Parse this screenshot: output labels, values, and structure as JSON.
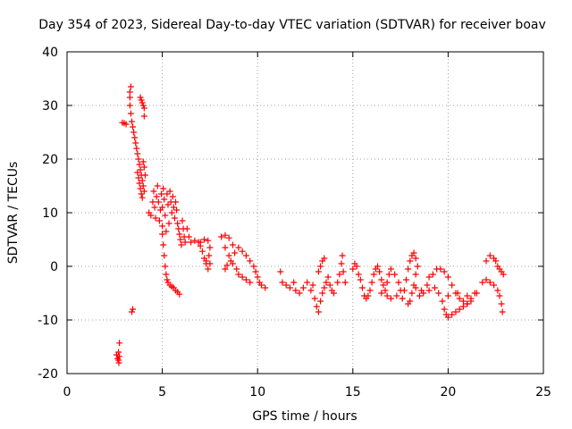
{
  "chart_data": {
    "type": "scatter",
    "title": "Day 354 of 2023, Sidereal Day-to-day VTEC variation (SDTVAR) for receiver boav",
    "xlabel": "GPS time / hours",
    "ylabel": "SDTVAR / TECUs",
    "xlim": [
      0,
      25
    ],
    "ylim": [
      -20,
      40
    ],
    "xticks": [
      0,
      5,
      10,
      15,
      20,
      25
    ],
    "yticks": [
      -20,
      -10,
      0,
      10,
      20,
      30,
      40
    ],
    "grid": true,
    "marker": "plus",
    "series": [
      {
        "name": "SDTVAR",
        "color": "#ff0000",
        "points": [
          [
            2.6,
            -16.5
          ],
          [
            2.65,
            -17.2
          ],
          [
            2.7,
            -16.0
          ],
          [
            2.7,
            -17.5
          ],
          [
            2.72,
            -18.0
          ],
          [
            2.75,
            -14.3
          ],
          [
            2.75,
            -16.8
          ],
          [
            2.9,
            26.8
          ],
          [
            3.0,
            26.7
          ],
          [
            3.1,
            26.5
          ],
          [
            3.35,
            33.5
          ],
          [
            3.4,
            -8.5
          ],
          [
            3.45,
            -8.0
          ],
          [
            3.3,
            32.5
          ],
          [
            3.3,
            31.5
          ],
          [
            3.3,
            30.0
          ],
          [
            3.35,
            28.5
          ],
          [
            3.4,
            27.0
          ],
          [
            3.45,
            26.0
          ],
          [
            3.5,
            25.0
          ],
          [
            3.55,
            24.0
          ],
          [
            3.6,
            23.0
          ],
          [
            3.65,
            22.0
          ],
          [
            3.7,
            21.0
          ],
          [
            3.75,
            20.0
          ],
          [
            3.8,
            19.0
          ],
          [
            3.85,
            18.0
          ],
          [
            3.9,
            17.0
          ],
          [
            3.95,
            16.0
          ],
          [
            3.7,
            17.5
          ],
          [
            3.75,
            16.5
          ],
          [
            3.8,
            15.5
          ],
          [
            3.85,
            14.5
          ],
          [
            3.9,
            13.5
          ],
          [
            3.95,
            12.8
          ],
          [
            3.85,
            31.5
          ],
          [
            3.9,
            31.0
          ],
          [
            3.95,
            30.5
          ],
          [
            4.0,
            30.0
          ],
          [
            4.05,
            29.5
          ],
          [
            4.05,
            28.0
          ],
          [
            4.0,
            19.5
          ],
          [
            4.05,
            18.5
          ],
          [
            4.1,
            17.0
          ],
          [
            4.0,
            15.0
          ],
          [
            4.05,
            14.0
          ],
          [
            4.3,
            10.0
          ],
          [
            4.4,
            9.5
          ],
          [
            4.5,
            12.0
          ],
          [
            4.55,
            14.0
          ],
          [
            4.6,
            11.0
          ],
          [
            4.65,
            9.0
          ],
          [
            4.7,
            13.0
          ],
          [
            4.75,
            15.0
          ],
          [
            4.8,
            12.0
          ],
          [
            4.85,
            8.5
          ],
          [
            4.9,
            10.5
          ],
          [
            4.95,
            13.5
          ],
          [
            5.0,
            11.0
          ],
          [
            5.0,
            7.5
          ],
          [
            5.05,
            14.5
          ],
          [
            5.1,
            12.5
          ],
          [
            5.15,
            9.5
          ],
          [
            5.2,
            6.5
          ],
          [
            5.25,
            13.5
          ],
          [
            5.3,
            11.5
          ],
          [
            5.35,
            8.0
          ],
          [
            5.4,
            14.0
          ],
          [
            5.45,
            12.0
          ],
          [
            5.5,
            10.0
          ],
          [
            5.55,
            13.0
          ],
          [
            5.6,
            11.0
          ],
          [
            5.65,
            9.0
          ],
          [
            5.7,
            12.0
          ],
          [
            5.75,
            10.5
          ],
          [
            5.8,
            8.0
          ],
          [
            5.85,
            7.0
          ],
          [
            5.9,
            6.0
          ],
          [
            5.95,
            5.0
          ],
          [
            6.0,
            4.0
          ],
          [
            6.05,
            8.5
          ],
          [
            6.1,
            7.0
          ],
          [
            6.15,
            5.5
          ],
          [
            6.2,
            4.5
          ],
          [
            6.3,
            7.0
          ],
          [
            6.4,
            5.5
          ],
          [
            5.0,
            6.0
          ],
          [
            5.05,
            4.0
          ],
          [
            5.1,
            2.0
          ],
          [
            5.15,
            0.0
          ],
          [
            5.2,
            -1.5
          ],
          [
            5.25,
            -2.5
          ],
          [
            5.3,
            -3.0
          ],
          [
            5.4,
            -3.5
          ],
          [
            5.5,
            -3.8
          ],
          [
            5.6,
            -4.0
          ],
          [
            5.7,
            -4.5
          ],
          [
            5.8,
            -4.8
          ],
          [
            5.9,
            -5.2
          ],
          [
            6.5,
            4.5
          ],
          [
            6.7,
            4.8
          ],
          [
            6.9,
            4.5
          ],
          [
            7.0,
            3.8
          ],
          [
            7.1,
            2.8
          ],
          [
            7.2,
            1.5
          ],
          [
            7.3,
            0.5
          ],
          [
            7.4,
            -0.5
          ],
          [
            7.5,
            0.5
          ],
          [
            7.0,
            4.5
          ],
          [
            7.2,
            5.0
          ],
          [
            7.4,
            4.8
          ],
          [
            7.5,
            3.5
          ],
          [
            7.45,
            2.0
          ],
          [
            7.3,
            1.0
          ],
          [
            8.1,
            5.5
          ],
          [
            8.3,
            5.8
          ],
          [
            8.5,
            5.3
          ],
          [
            8.7,
            4.0
          ],
          [
            8.8,
            2.5
          ],
          [
            8.6,
            1.0
          ],
          [
            8.4,
            0.2
          ],
          [
            8.3,
            -0.5
          ],
          [
            8.3,
            3.5
          ],
          [
            8.5,
            2.0
          ],
          [
            8.7,
            0.5
          ],
          [
            8.9,
            -0.5
          ],
          [
            9.0,
            -1.5
          ],
          [
            9.2,
            -2.0
          ],
          [
            9.4,
            -2.5
          ],
          [
            9.6,
            -3.0
          ],
          [
            9.0,
            3.5
          ],
          [
            9.2,
            2.8
          ],
          [
            9.4,
            2.0
          ],
          [
            9.6,
            1.0
          ],
          [
            9.8,
            0.0
          ],
          [
            9.9,
            -1.0
          ],
          [
            10.0,
            -2.0
          ],
          [
            10.1,
            -3.0
          ],
          [
            10.2,
            -3.5
          ],
          [
            10.4,
            -4.0
          ],
          [
            11.2,
            -1.0
          ],
          [
            11.3,
            -3.0
          ],
          [
            11.5,
            -3.5
          ],
          [
            11.7,
            -4.0
          ],
          [
            11.9,
            -3.0
          ],
          [
            12.0,
            -4.5
          ],
          [
            12.2,
            -5.0
          ],
          [
            12.4,
            -4.0
          ],
          [
            12.6,
            -3.0
          ],
          [
            12.8,
            -4.5
          ],
          [
            12.9,
            -3.5
          ],
          [
            13.0,
            -6.0
          ],
          [
            13.1,
            -7.5
          ],
          [
            13.2,
            -8.5
          ],
          [
            13.3,
            -6.5
          ],
          [
            13.4,
            -5.0
          ],
          [
            13.5,
            -4.0
          ],
          [
            13.6,
            -3.0
          ],
          [
            13.7,
            -2.0
          ],
          [
            13.8,
            -3.5
          ],
          [
            13.9,
            -4.5
          ],
          [
            13.2,
            -1.0
          ],
          [
            13.3,
            0.0
          ],
          [
            13.4,
            1.0
          ],
          [
            13.5,
            1.5
          ],
          [
            14.0,
            -5.0
          ],
          [
            14.2,
            -3.0
          ],
          [
            14.3,
            -1.5
          ],
          [
            14.4,
            0.5
          ],
          [
            14.45,
            2.0
          ],
          [
            14.5,
            -1.0
          ],
          [
            14.6,
            -3.0
          ],
          [
            15.0,
            -0.5
          ],
          [
            15.1,
            0.5
          ],
          [
            15.2,
            0.0
          ],
          [
            15.3,
            -1.5
          ],
          [
            15.4,
            -2.5
          ],
          [
            15.5,
            -4.0
          ],
          [
            15.6,
            -5.5
          ],
          [
            15.7,
            -6.0
          ],
          [
            15.8,
            -5.5
          ],
          [
            15.9,
            -4.5
          ],
          [
            16.0,
            -3.0
          ],
          [
            16.1,
            -1.5
          ],
          [
            16.2,
            -0.5
          ],
          [
            16.3,
            0.0
          ],
          [
            16.4,
            -1.0
          ],
          [
            16.5,
            -2.5
          ],
          [
            16.6,
            -3.5
          ],
          [
            16.7,
            -4.5
          ],
          [
            16.8,
            -3.0
          ],
          [
            16.9,
            -1.5
          ],
          [
            17.0,
            -0.5
          ],
          [
            17.2,
            -1.5
          ],
          [
            17.4,
            -3.0
          ],
          [
            17.5,
            -4.5
          ],
          [
            17.6,
            -6.0
          ],
          [
            17.7,
            -4.5
          ],
          [
            17.8,
            -2.5
          ],
          [
            17.9,
            -0.5
          ],
          [
            18.0,
            1.0
          ],
          [
            18.1,
            2.0
          ],
          [
            18.2,
            2.5
          ],
          [
            18.3,
            1.5
          ],
          [
            18.4,
            0.0
          ],
          [
            18.3,
            -1.5
          ],
          [
            18.2,
            -3.5
          ],
          [
            18.1,
            -5.0
          ],
          [
            18.0,
            -6.5
          ],
          [
            17.9,
            -7.0
          ],
          [
            18.5,
            -5.5
          ],
          [
            18.7,
            -5.0
          ],
          [
            18.9,
            -3.5
          ],
          [
            19.0,
            -2.0
          ],
          [
            19.2,
            -1.5
          ],
          [
            19.4,
            -0.5
          ],
          [
            19.6,
            -0.5
          ],
          [
            19.8,
            -1.0
          ],
          [
            20.0,
            -2.0
          ],
          [
            20.2,
            -3.5
          ],
          [
            20.4,
            -5.0
          ],
          [
            20.6,
            -6.0
          ],
          [
            20.8,
            -6.5
          ],
          [
            21.0,
            -7.0
          ],
          [
            21.2,
            -6.0
          ],
          [
            21.4,
            -5.0
          ],
          [
            19.5,
            -5.0
          ],
          [
            19.7,
            -6.5
          ],
          [
            19.8,
            -8.0
          ],
          [
            19.9,
            -9.0
          ],
          [
            20.0,
            -9.5
          ],
          [
            20.2,
            -9.0
          ],
          [
            20.4,
            -8.5
          ],
          [
            20.6,
            -8.0
          ],
          [
            20.8,
            -7.5
          ],
          [
            21.0,
            -7.0
          ],
          [
            21.2,
            -6.5
          ],
          [
            20.0,
            -5.5
          ],
          [
            20.5,
            -5.0
          ],
          [
            21.0,
            -5.5
          ],
          [
            21.5,
            -5.0
          ],
          [
            16.5,
            -5.0
          ],
          [
            16.8,
            -5.5
          ],
          [
            17.0,
            -6.0
          ],
          [
            17.3,
            -5.5
          ],
          [
            18.3,
            -4.0
          ],
          [
            18.6,
            -4.5
          ],
          [
            19.0,
            -4.5
          ],
          [
            19.3,
            -4.0
          ],
          [
            21.8,
            -3.0
          ],
          [
            22.0,
            -2.5
          ],
          [
            22.2,
            -3.0
          ],
          [
            22.4,
            -3.5
          ],
          [
            22.6,
            -4.5
          ],
          [
            22.7,
            -5.5
          ],
          [
            22.8,
            -7.0
          ],
          [
            22.85,
            -8.5
          ],
          [
            22.0,
            1.0
          ],
          [
            22.2,
            2.0
          ],
          [
            22.4,
            1.5
          ],
          [
            22.5,
            1.0
          ],
          [
            22.6,
            0.0
          ],
          [
            22.7,
            -0.5
          ],
          [
            22.8,
            -1.0
          ],
          [
            22.9,
            -1.5
          ]
        ]
      }
    ]
  }
}
